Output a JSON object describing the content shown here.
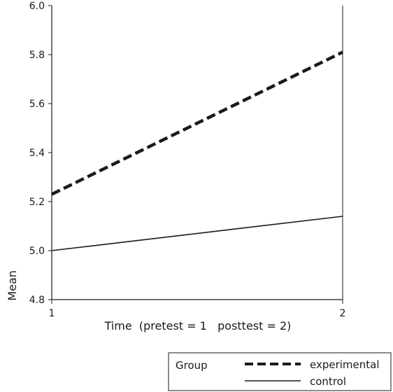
{
  "chart_data": {
    "type": "line",
    "x": [
      1,
      2
    ],
    "xticks": [
      "1",
      "2"
    ],
    "xlabel": "Time  (pretest = 1   posttest = 2)",
    "ylabel": "Mean",
    "ylim": [
      4.8,
      6.0
    ],
    "yticks": [
      "4.8",
      "5.0",
      "5.2",
      "5.4",
      "5.6",
      "5.8",
      "6.0"
    ],
    "series": [
      {
        "name": "experimental",
        "values": [
          5.23,
          5.81
        ],
        "style": "dashed",
        "color": "#1a1a1a"
      },
      {
        "name": "control",
        "values": [
          5.0,
          5.14
        ],
        "style": "solid",
        "color": "#1a1a1a"
      }
    ],
    "legend": {
      "title": "Group",
      "position": "bottom-right"
    }
  }
}
